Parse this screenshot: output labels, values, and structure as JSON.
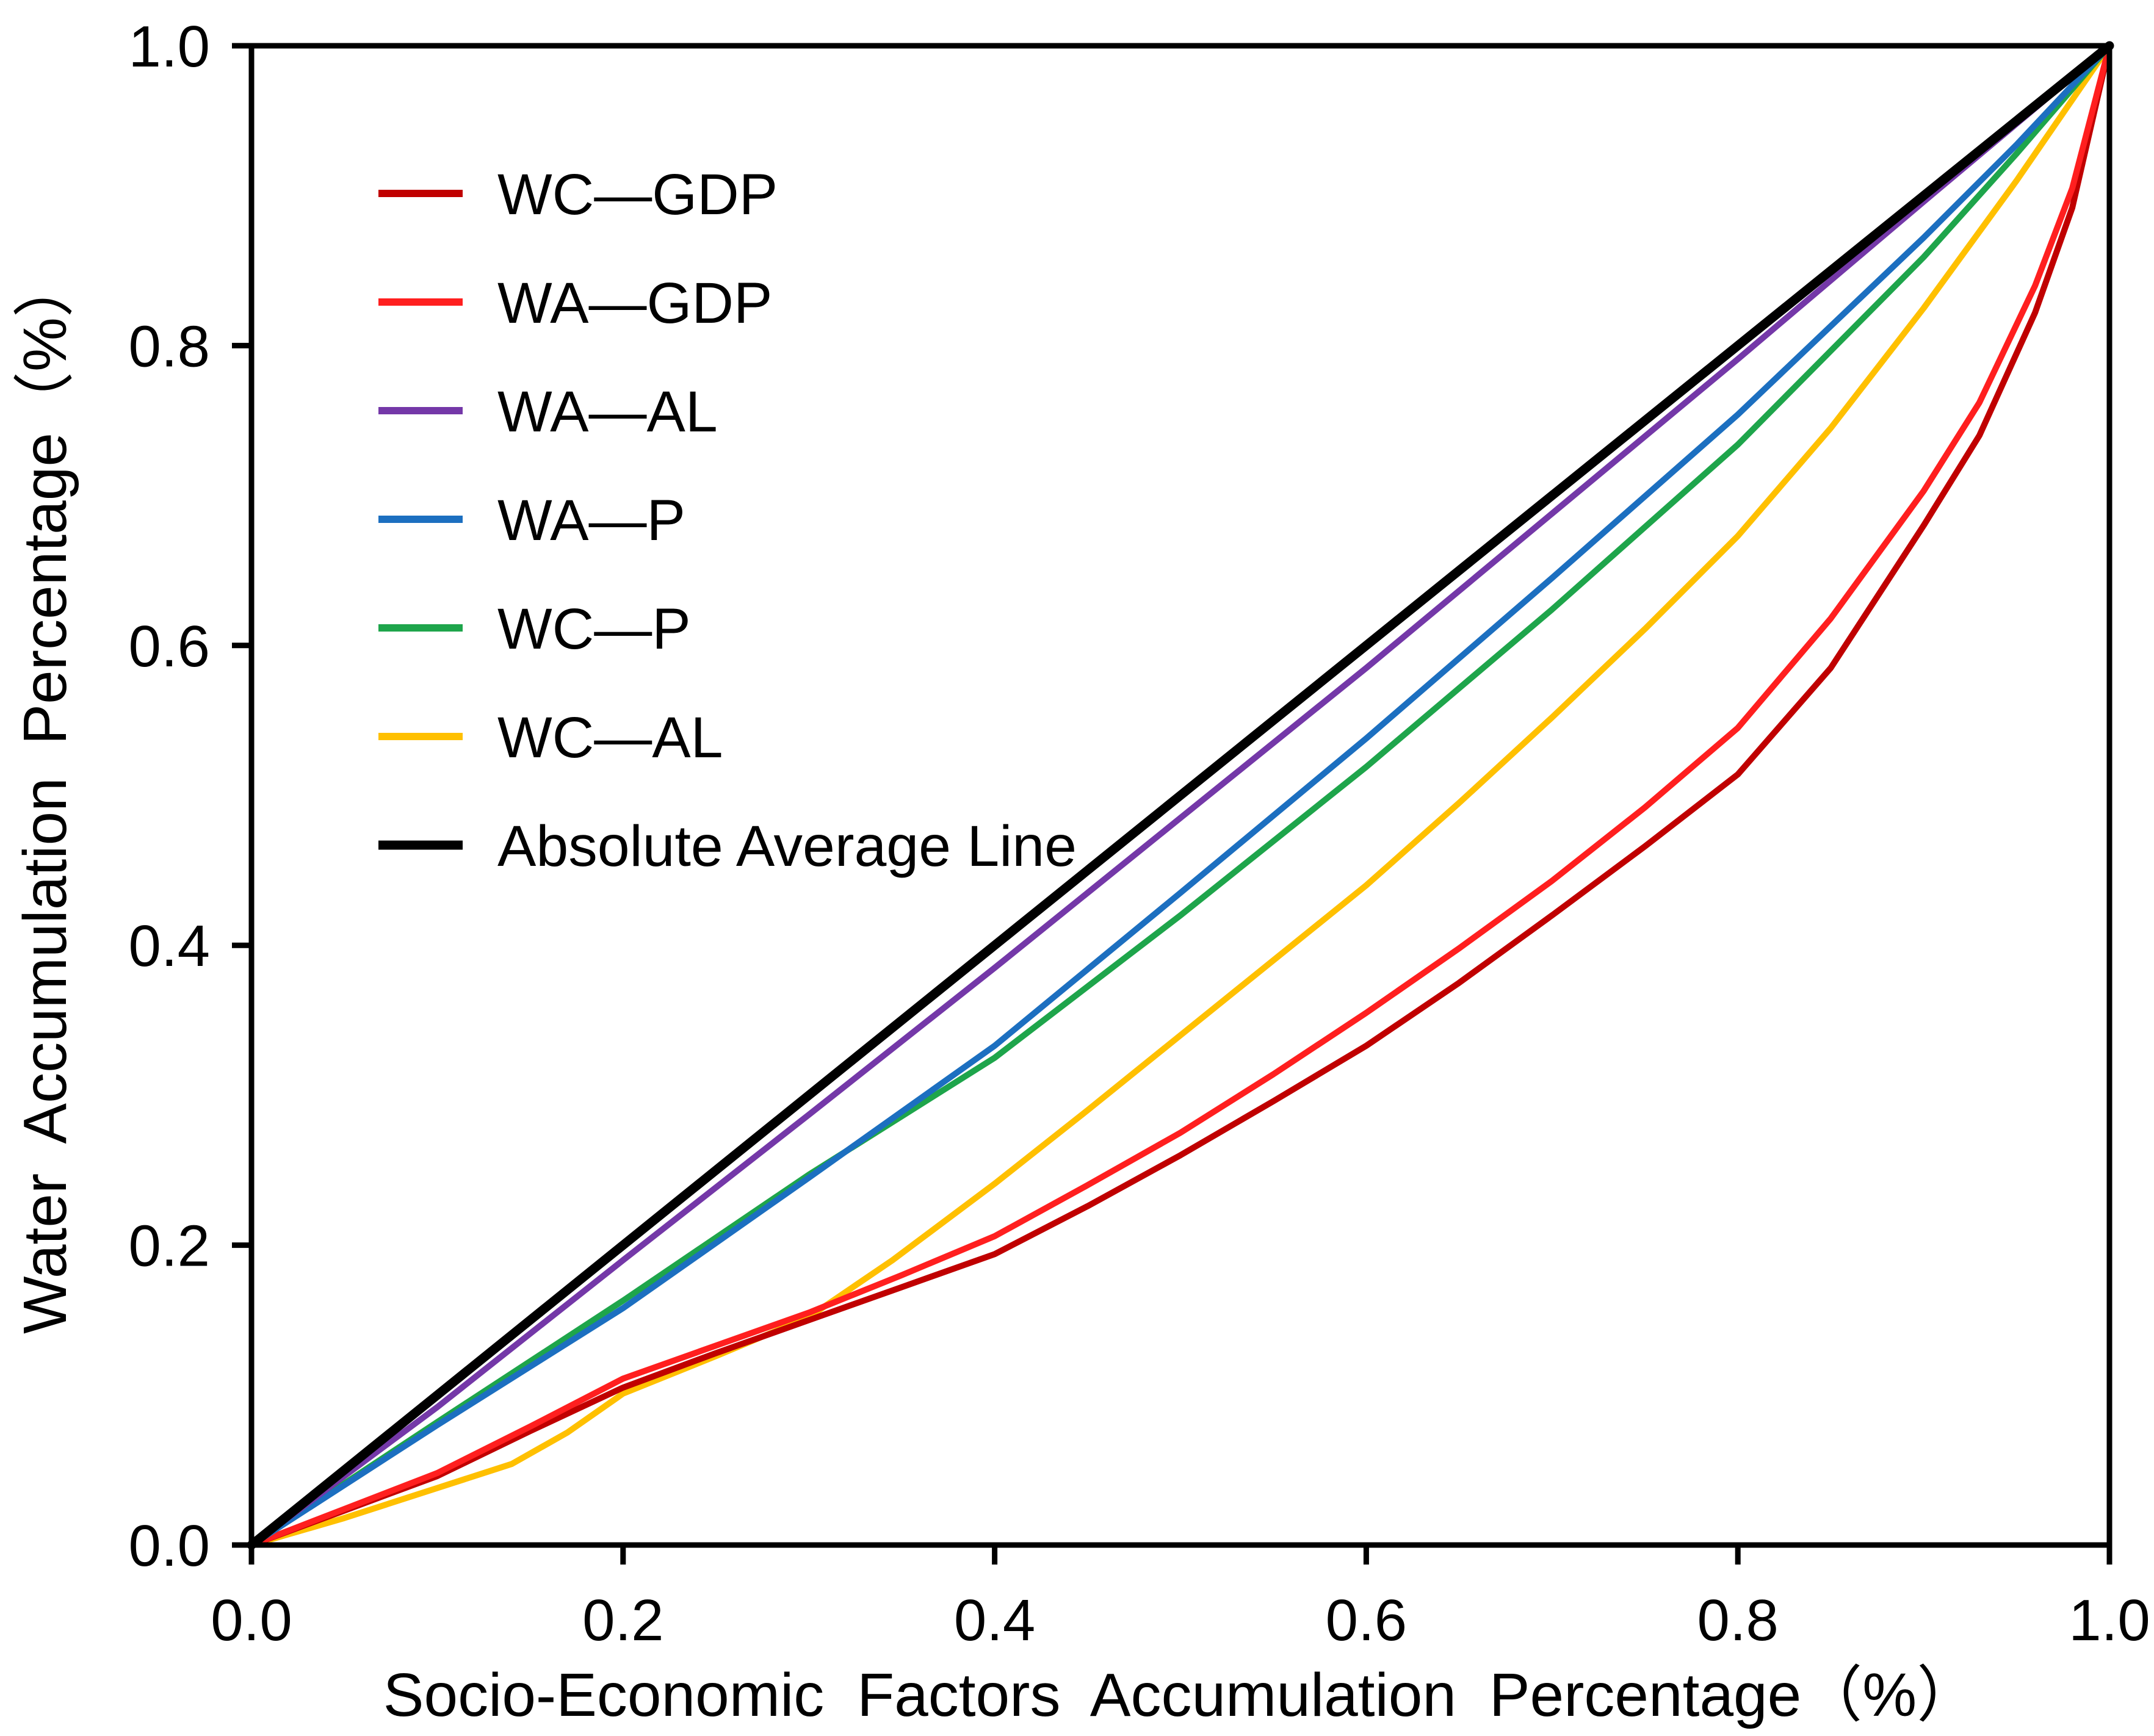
{
  "figure": {
    "background": "#ffffff",
    "text_color": "#000000"
  },
  "chart_data": {
    "type": "line",
    "title": "",
    "xlabel": "Socio-Economic  Factors  Accumulation  Percentage（%）",
    "ylabel": "Water  Accumulation  Percentage（%）",
    "xlim": [
      0.0,
      1.0
    ],
    "ylim": [
      0.0,
      1.0
    ],
    "grid": false,
    "legend_position": "upper-left-inside",
    "xticks": {
      "values": [
        0.0,
        0.2,
        0.4,
        0.6,
        0.8,
        1.0
      ],
      "labels": [
        "0.0",
        "0.2",
        "0.4",
        "0.6",
        "0.8",
        "1.0"
      ]
    },
    "yticks": {
      "values": [
        0.0,
        0.2,
        0.4,
        0.6,
        0.8,
        1.0
      ],
      "labels": [
        "0.0",
        "0.2",
        "0.4",
        "0.6",
        "0.8",
        "1.0"
      ]
    },
    "axis_color": "#000000",
    "draw_order": [
      "wc-al",
      "wc-gdp",
      "wa-gdp",
      "wc-p",
      "wa-p",
      "wa-al",
      "avg"
    ],
    "series": [
      {
        "id": "wc-gdp",
        "name": "WC—GDP",
        "color": "#C00000",
        "width": 10,
        "points": [
          [
            0,
            0
          ],
          [
            0.05,
            0.023
          ],
          [
            0.1,
            0.046
          ],
          [
            0.15,
            0.076
          ],
          [
            0.2,
            0.105
          ],
          [
            0.25,
            0.128
          ],
          [
            0.3,
            0.15
          ],
          [
            0.35,
            0.172
          ],
          [
            0.4,
            0.194
          ],
          [
            0.45,
            0.226
          ],
          [
            0.5,
            0.26
          ],
          [
            0.55,
            0.296
          ],
          [
            0.6,
            0.333
          ],
          [
            0.65,
            0.375
          ],
          [
            0.7,
            0.42
          ],
          [
            0.75,
            0.466
          ],
          [
            0.8,
            0.514
          ],
          [
            0.85,
            0.585
          ],
          [
            0.9,
            0.68
          ],
          [
            0.93,
            0.74
          ],
          [
            0.96,
            0.822
          ],
          [
            0.98,
            0.892
          ],
          [
            1,
            1
          ]
        ]
      },
      {
        "id": "wa-gdp",
        "name": "WA—GDP",
        "color": "#FF1F1F",
        "width": 10,
        "points": [
          [
            0,
            0
          ],
          [
            0.05,
            0.024
          ],
          [
            0.1,
            0.048
          ],
          [
            0.15,
            0.079
          ],
          [
            0.2,
            0.111
          ],
          [
            0.25,
            0.133
          ],
          [
            0.3,
            0.155
          ],
          [
            0.35,
            0.18
          ],
          [
            0.4,
            0.206
          ],
          [
            0.45,
            0.24
          ],
          [
            0.5,
            0.275
          ],
          [
            0.55,
            0.314
          ],
          [
            0.6,
            0.355
          ],
          [
            0.65,
            0.398
          ],
          [
            0.7,
            0.443
          ],
          [
            0.75,
            0.492
          ],
          [
            0.8,
            0.545
          ],
          [
            0.85,
            0.618
          ],
          [
            0.9,
            0.703
          ],
          [
            0.93,
            0.762
          ],
          [
            0.96,
            0.84
          ],
          [
            0.98,
            0.905
          ],
          [
            1,
            1
          ]
        ]
      },
      {
        "id": "wa-al",
        "name": "WA—AL",
        "color": "#7438A8",
        "width": 10,
        "points": [
          [
            0,
            0
          ],
          [
            0.1,
            0.092
          ],
          [
            0.2,
            0.19
          ],
          [
            0.3,
            0.287
          ],
          [
            0.4,
            0.385
          ],
          [
            0.5,
            0.485
          ],
          [
            0.6,
            0.585
          ],
          [
            0.7,
            0.688
          ],
          [
            0.8,
            0.791
          ],
          [
            0.9,
            0.896
          ],
          [
            1,
            1
          ]
        ]
      },
      {
        "id": "wa-p",
        "name": "WA—P",
        "color": "#1C6FC0",
        "width": 10,
        "points": [
          [
            0,
            0
          ],
          [
            0.1,
            0.08
          ],
          [
            0.2,
            0.158
          ],
          [
            0.3,
            0.245
          ],
          [
            0.4,
            0.333
          ],
          [
            0.5,
            0.435
          ],
          [
            0.6,
            0.538
          ],
          [
            0.7,
            0.645
          ],
          [
            0.8,
            0.754
          ],
          [
            0.9,
            0.872
          ],
          [
            0.95,
            0.934
          ],
          [
            1,
            1
          ]
        ]
      },
      {
        "id": "wc-p",
        "name": "WC—P",
        "color": "#1EA54B",
        "width": 10,
        "points": [
          [
            0,
            0
          ],
          [
            0.1,
            0.082
          ],
          [
            0.2,
            0.163
          ],
          [
            0.3,
            0.247
          ],
          [
            0.4,
            0.325
          ],
          [
            0.5,
            0.42
          ],
          [
            0.6,
            0.519
          ],
          [
            0.7,
            0.624
          ],
          [
            0.8,
            0.734
          ],
          [
            0.9,
            0.859
          ],
          [
            0.95,
            0.928
          ],
          [
            1,
            1
          ]
        ]
      },
      {
        "id": "wc-al",
        "name": "WC—AL",
        "color": "#FFC000",
        "width": 10,
        "points": [
          [
            0,
            0
          ],
          [
            0.05,
            0.018
          ],
          [
            0.1,
            0.038
          ],
          [
            0.14,
            0.054
          ],
          [
            0.17,
            0.075
          ],
          [
            0.2,
            0.101
          ],
          [
            0.25,
            0.126
          ],
          [
            0.3,
            0.152
          ],
          [
            0.345,
            0.19
          ],
          [
            0.4,
            0.241
          ],
          [
            0.45,
            0.29
          ],
          [
            0.5,
            0.34
          ],
          [
            0.55,
            0.39
          ],
          [
            0.6,
            0.44
          ],
          [
            0.65,
            0.495
          ],
          [
            0.7,
            0.552
          ],
          [
            0.75,
            0.611
          ],
          [
            0.8,
            0.673
          ],
          [
            0.85,
            0.745
          ],
          [
            0.9,
            0.825
          ],
          [
            0.95,
            0.91
          ],
          [
            1,
            1
          ]
        ]
      },
      {
        "id": "avg",
        "name": "Absolute Average Line",
        "color": "#000000",
        "width": 15,
        "points": [
          [
            0,
            0
          ],
          [
            1,
            1
          ]
        ]
      }
    ]
  }
}
